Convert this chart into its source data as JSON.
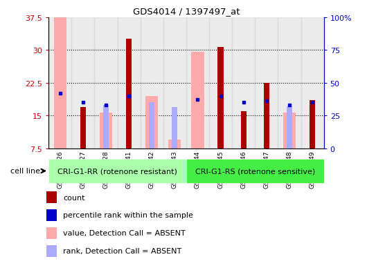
{
  "title": "GDS4014 / 1397497_at",
  "samples": [
    "GSM498426",
    "GSM498427",
    "GSM498428",
    "GSM498441",
    "GSM498442",
    "GSM498443",
    "GSM498444",
    "GSM498445",
    "GSM498446",
    "GSM498447",
    "GSM498448",
    "GSM498449"
  ],
  "group1_count": 6,
  "group2_count": 6,
  "group1_label": "CRI-G1-RR (rotenone resistant)",
  "group2_label": "CRI-G1-RS (rotenone sensitive)",
  "cell_line_label": "cell line",
  "ylim_min": 7.5,
  "ylim_max": 37.5,
  "yticks": [
    7.5,
    15.0,
    22.5,
    30.0,
    37.5
  ],
  "ytick_labels": [
    "7.5",
    "15",
    "22.5",
    "30",
    "37.5"
  ],
  "y2lim_min": 0,
  "y2lim_max": 100,
  "y2ticks": [
    0,
    25,
    50,
    75,
    100
  ],
  "y2tick_labels": [
    "0",
    "25",
    "50",
    "75",
    "100%"
  ],
  "count_values": [
    null,
    17.0,
    null,
    32.5,
    null,
    null,
    null,
    30.7,
    16.0,
    22.5,
    null,
    18.5
  ],
  "rank_values": [
    42.0,
    35.0,
    33.0,
    40.0,
    null,
    null,
    37.0,
    40.0,
    35.0,
    36.0,
    33.0,
    35.0
  ],
  "absent_value": [
    37.5,
    null,
    15.7,
    null,
    19.5,
    9.5,
    29.5,
    null,
    null,
    null,
    15.7,
    null
  ],
  "absent_rank": [
    null,
    null,
    33.0,
    null,
    35.0,
    31.5,
    null,
    null,
    null,
    null,
    32.0,
    null
  ],
  "count_color": "#aa0000",
  "rank_color": "#0000cc",
  "absent_value_color": "#ffaaaa",
  "absent_rank_color": "#aaaaff",
  "col_bg_color": "#d3d3d3",
  "label_color_left": "#cc0000",
  "label_color_right": "#0000cc",
  "group1_bg": "#aaffaa",
  "group2_bg": "#44ee44",
  "legend": [
    {
      "label": "count",
      "color": "#aa0000",
      "marker": "s"
    },
    {
      "label": "percentile rank within the sample",
      "color": "#0000cc",
      "marker": "s"
    },
    {
      "label": "value, Detection Call = ABSENT",
      "color": "#ffaaaa",
      "marker": "s"
    },
    {
      "label": "rank, Detection Call = ABSENT",
      "color": "#aaaaff",
      "marker": "s"
    }
  ]
}
